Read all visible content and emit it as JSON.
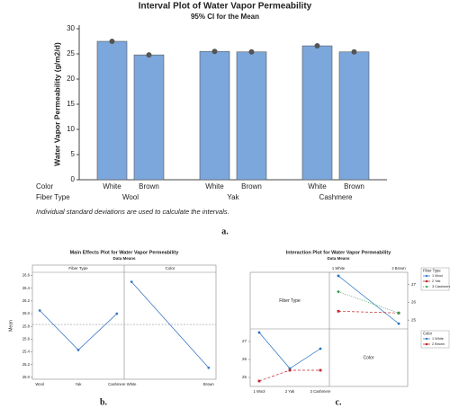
{
  "chart_data": [
    {
      "type": "interval",
      "title": "Interval Plot of Water Vapor Permeability",
      "subtitle": "95% CI for the Mean",
      "y_label": "Water Vapor Permeability (g/m2/d)",
      "row_labels": [
        "Color",
        "Fiber Type"
      ],
      "categories": [
        "White",
        "Brown",
        "White",
        "Brown",
        "White",
        "Brown"
      ],
      "groups": [
        "Wool",
        "Yak",
        "Cashmere"
      ],
      "values": [
        27.5,
        24.8,
        25.5,
        25.4,
        26.6,
        25.4
      ],
      "color": "#7ba7dc",
      "marker_color": "#555555",
      "ylim": [
        0,
        30
      ],
      "yticks": [
        0,
        5,
        10,
        15,
        20,
        25,
        30
      ],
      "note": "Individual standard deviations are used to calculate the intervals.",
      "caption": "a."
    },
    {
      "type": "main_effects",
      "title": "Main Effects Plot for Water Vapor Permeability",
      "subtitle": "Data Means",
      "y_label": "Mean",
      "color": "#3b78c4",
      "reference_line": 25.83,
      "panels": [
        {
          "title": "Fiber Type",
          "categories": [
            "Wool",
            "Yak",
            "Cashmere"
          ],
          "values": [
            26.05,
            25.43,
            26.0
          ]
        },
        {
          "title": "Color",
          "categories": [
            "White",
            "Brown"
          ],
          "values": [
            26.5,
            25.15
          ]
        }
      ],
      "ylim": [
        24.97,
        26.65
      ],
      "yticks": [
        {
          "value": 25.0,
          "label": "25.0"
        },
        25.2,
        25.4,
        25.6,
        25.8,
        {
          "value": 26.0,
          "label": "26.0"
        },
        26.2,
        26.4,
        26.6
      ],
      "caption": "b."
    },
    {
      "type": "interaction",
      "title": "Interaction Plot for Water Vapor Permeability",
      "subtitle": "Data Means",
      "factors": [
        "Fiber Type",
        "Color"
      ],
      "panels": [
        {
          "categories": [
            "1 White",
            "2 Brown"
          ],
          "series": [
            {
              "name": "1 Wool",
              "color": "#1f6fc0",
              "marker": "circle",
              "line_style": "solid",
              "values": [
                27.5,
                24.8
              ]
            },
            {
              "name": "2 Yak",
              "color": "#c0282d",
              "marker": "square",
              "line_style": "dashed",
              "values": [
                25.5,
                25.4
              ]
            },
            {
              "name": "3 Cashmere",
              "color": "#2e9a4a",
              "marker": "diamond",
              "line_style": "dotted",
              "values": [
                26.6,
                25.4
              ]
            }
          ]
        },
        {
          "categories": [
            "1 Wool",
            "2 Yak",
            "3 Cashmere"
          ],
          "series": [
            {
              "name": "1 White",
              "color": "#1f6fc0",
              "marker": "circle",
              "line_style": "solid",
              "values": [
                27.5,
                25.5,
                26.6
              ]
            },
            {
              "name": "2 Brown",
              "color": "#c0282d",
              "marker": "square",
              "line_style": "dashed",
              "values": [
                24.8,
                25.4,
                25.4
              ]
            }
          ]
        }
      ],
      "ylim": [
        24.5,
        27.7
      ],
      "yticks": [
        25,
        26,
        27
      ],
      "caption": "c."
    }
  ]
}
